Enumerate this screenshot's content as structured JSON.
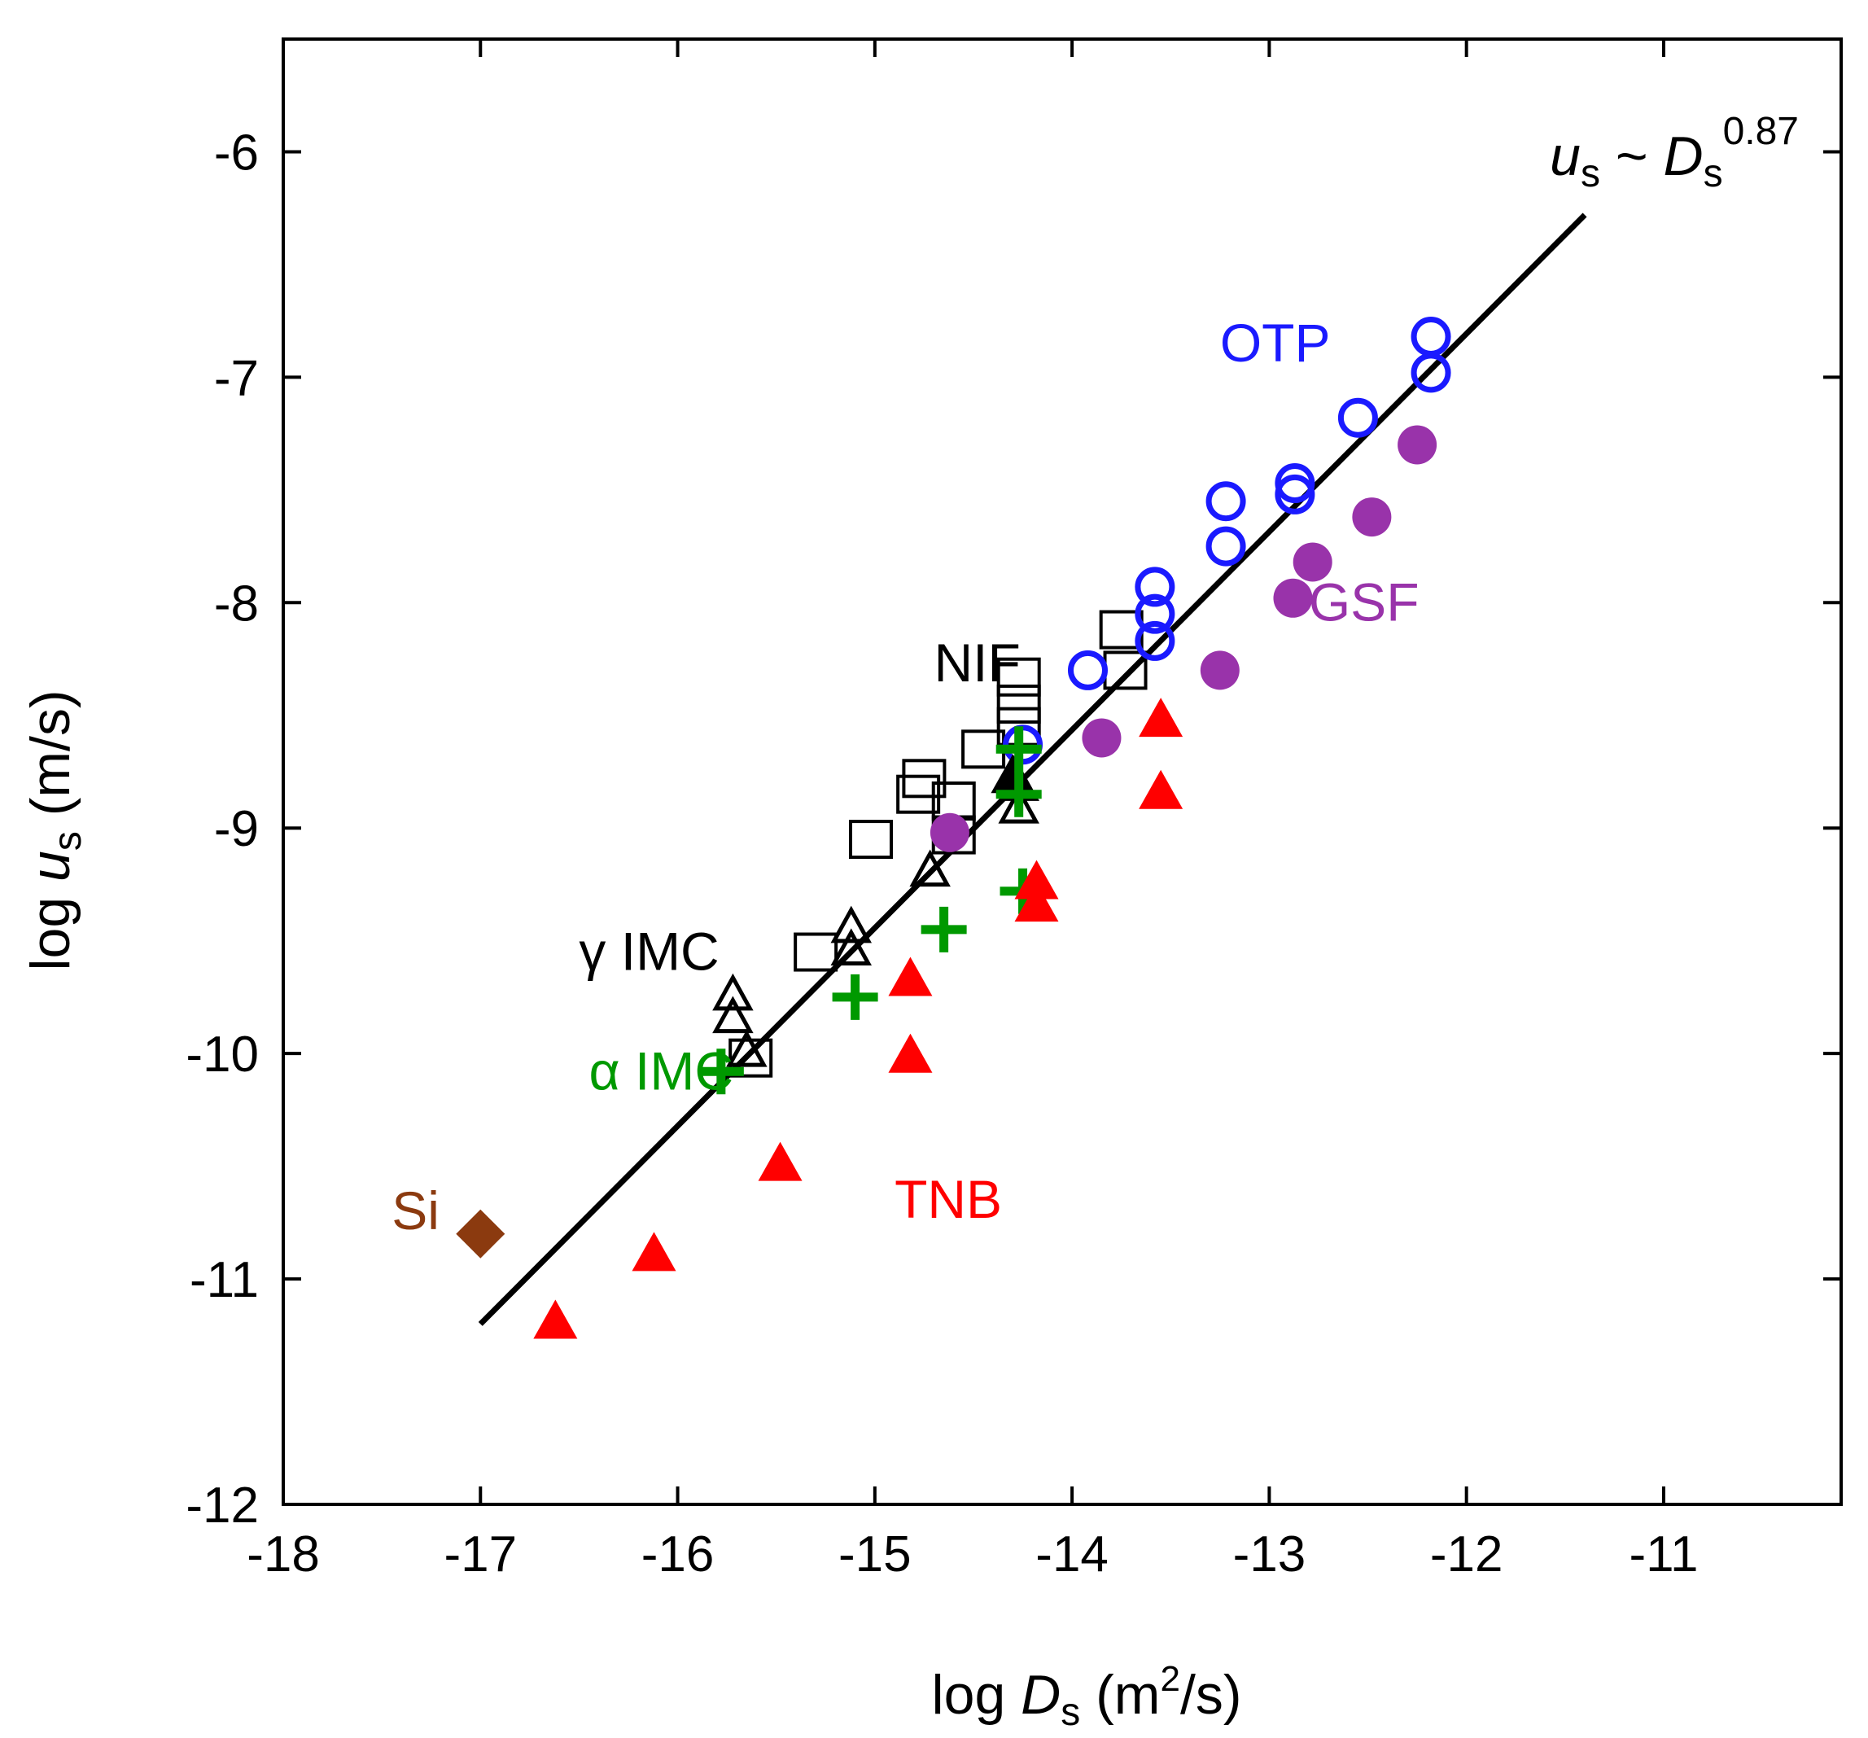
{
  "chart_data": {
    "type": "scatter",
    "xlim": [
      -18,
      -10.1
    ],
    "ylim": [
      -12,
      -5.5
    ],
    "x_ticks": [
      -18,
      -17,
      -16,
      -15,
      -14,
      -13,
      -12,
      -11
    ],
    "y_ticks": [
      -12,
      -11,
      -10,
      -9,
      -8,
      -7,
      -6
    ],
    "xlabel": {
      "prefix": "log ",
      "var": "D",
      "sub": "s",
      "unit_open": " (m",
      "sup": "2",
      "unit_close": "/s)"
    },
    "ylabel": {
      "prefix": "log ",
      "var": "u",
      "sub": "s",
      "unit": " (m/s)"
    },
    "annotation": {
      "var1": "u",
      "sub1": "s",
      "sep": " ~ ",
      "var2": "D",
      "sub2": "s",
      "exponent": "0.87"
    },
    "fit_line": {
      "x": [
        -17.0,
        -11.4
      ],
      "y": [
        -11.2,
        -6.28
      ]
    },
    "series": [
      {
        "name": "OTP",
        "label": "OTP",
        "color": "#1a1aff",
        "marker": "open-circle",
        "label_pos": [
          -13.25,
          -6.85
        ],
        "points": [
          [
            -12.18,
            -6.82
          ],
          [
            -12.18,
            -6.98
          ],
          [
            -12.55,
            -7.18
          ],
          [
            -12.87,
            -7.47
          ],
          [
            -12.87,
            -7.52
          ],
          [
            -13.22,
            -7.55
          ],
          [
            -13.22,
            -7.75
          ],
          [
            -13.58,
            -7.93
          ],
          [
            -13.58,
            -8.05
          ],
          [
            -13.58,
            -8.17
          ],
          [
            -13.92,
            -8.3
          ],
          [
            -14.25,
            -8.63
          ]
        ]
      },
      {
        "name": "GSF",
        "label": "GSF",
        "color": "#9933aa",
        "marker": "filled-circle",
        "label_pos": [
          -12.8,
          -8.0
        ],
        "points": [
          [
            -12.25,
            -7.3
          ],
          [
            -12.48,
            -7.62
          ],
          [
            -12.78,
            -7.82
          ],
          [
            -12.88,
            -7.98
          ],
          [
            -13.25,
            -8.3
          ],
          [
            -13.85,
            -8.6
          ],
          [
            -14.62,
            -9.02
          ]
        ]
      },
      {
        "name": "NIF",
        "label": "NIF",
        "color": "#000000",
        "marker": "open-square",
        "label_pos": [
          -14.7,
          -8.27
        ],
        "points": [
          [
            -13.75,
            -8.12
          ],
          [
            -13.73,
            -8.3
          ],
          [
            -14.27,
            -8.33
          ],
          [
            -14.27,
            -8.45
          ],
          [
            -14.27,
            -8.55
          ],
          [
            -14.45,
            -8.65
          ],
          [
            -14.75,
            -8.78
          ],
          [
            -14.78,
            -8.85
          ],
          [
            -14.6,
            -8.88
          ],
          [
            -14.6,
            -9.03
          ],
          [
            -15.02,
            -9.05
          ],
          [
            -15.3,
            -9.55
          ],
          [
            -15.63,
            -10.02
          ]
        ]
      },
      {
        "name": "gamma IMC",
        "label": "γ IMC",
        "color": "#000000",
        "marker": "open-triangle",
        "label_pos": [
          -16.5,
          -9.55
        ],
        "points": [
          [
            -15.72,
            -9.75
          ],
          [
            -15.72,
            -9.85
          ],
          [
            -15.65,
            -10.0
          ],
          [
            -15.12,
            -9.45
          ],
          [
            -15.12,
            -9.55
          ],
          [
            -14.72,
            -9.2
          ],
          [
            -14.27,
            -8.82
          ],
          [
            -14.27,
            -8.92
          ]
        ]
      },
      {
        "name": "beta-like filled black",
        "label": "",
        "color": "#000000",
        "marker": "filled-triangle",
        "points": [
          [
            -14.3,
            -8.78
          ]
        ]
      },
      {
        "name": "alpha IMC",
        "label": "α IMC",
        "color": "#009900",
        "marker": "plus",
        "label_pos": [
          -16.45,
          -10.08
        ],
        "points": [
          [
            -15.78,
            -10.08
          ],
          [
            -15.1,
            -9.75
          ],
          [
            -14.65,
            -9.45
          ],
          [
            -14.27,
            -8.65
          ],
          [
            -14.27,
            -8.85
          ],
          [
            -14.25,
            -9.28
          ]
        ]
      },
      {
        "name": "TNB",
        "label": "TNB",
        "color": "#ff0000",
        "marker": "filled-triangle",
        "label_pos": [
          -14.9,
          -10.65
        ],
        "points": [
          [
            -16.62,
            -11.2
          ],
          [
            -16.12,
            -10.9
          ],
          [
            -15.48,
            -10.5
          ],
          [
            -14.82,
            -9.68
          ],
          [
            -14.82,
            -10.02
          ],
          [
            -14.18,
            -9.25
          ],
          [
            -14.18,
            -9.35
          ],
          [
            -13.55,
            -8.53
          ],
          [
            -13.55,
            -8.85
          ]
        ]
      },
      {
        "name": "Si",
        "label": "Si",
        "color": "#8b3a0f",
        "marker": "filled-diamond",
        "label_pos": [
          -17.45,
          -10.7
        ],
        "points": [
          [
            -17.0,
            -10.8
          ]
        ]
      }
    ]
  }
}
